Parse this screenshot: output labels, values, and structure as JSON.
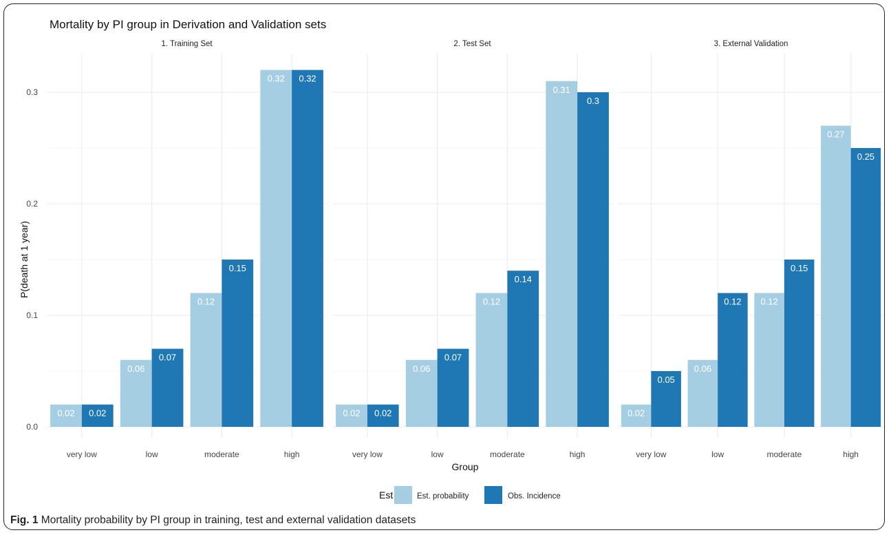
{
  "chart_data": {
    "type": "bar",
    "title": "Mortality by PI group in Derivation and Validation sets",
    "xlabel": "Group",
    "ylabel": "P(death at 1 year)",
    "ylim": [
      0,
      0.33
    ],
    "yticks": [
      "0.0",
      "0.1",
      "0.2",
      "0.3"
    ],
    "ytick_values": [
      0,
      0.1,
      0.2,
      0.3
    ],
    "grid": true,
    "categories": [
      "very low",
      "low",
      "moderate",
      "high"
    ],
    "legend": {
      "title": "Est",
      "position": "bottom",
      "entries": [
        "Est. probability",
        "Obs. Incidence"
      ]
    },
    "panels": [
      {
        "title": "1. Training Set",
        "series": [
          {
            "name": "Est. probability",
            "color": "#a6cee3",
            "values": [
              0.02,
              0.06,
              0.12,
              0.32
            ],
            "labels": [
              "0.02",
              "0.06",
              "0.12",
              "0.32"
            ]
          },
          {
            "name": "Obs. Incidence",
            "color": "#1f78b4",
            "values": [
              0.02,
              0.07,
              0.15,
              0.32
            ],
            "labels": [
              "0.02",
              "0.07",
              "0.15",
              "0.32"
            ]
          }
        ]
      },
      {
        "title": "2. Test Set",
        "series": [
          {
            "name": "Est. probability",
            "color": "#a6cee3",
            "values": [
              0.02,
              0.06,
              0.12,
              0.31
            ],
            "labels": [
              "0.02",
              "0.06",
              "0.12",
              "0.31"
            ]
          },
          {
            "name": "Obs. Incidence",
            "color": "#1f78b4",
            "values": [
              0.02,
              0.07,
              0.14,
              0.3
            ],
            "labels": [
              "0.02",
              "0.07",
              "0.14",
              "0.3"
            ]
          }
        ]
      },
      {
        "title": "3. External Validation",
        "series": [
          {
            "name": "Est. probability",
            "color": "#a6cee3",
            "values": [
              0.02,
              0.06,
              0.12,
              0.27
            ],
            "labels": [
              "0.02",
              "0.06",
              "0.12",
              "0.27"
            ]
          },
          {
            "name": "Obs. Incidence",
            "color": "#1f78b4",
            "values": [
              0.05,
              0.12,
              0.15,
              0.25
            ],
            "labels": [
              "0.05",
              "0.12",
              "0.15",
              "0.25"
            ]
          }
        ]
      }
    ]
  },
  "caption": {
    "label": "Fig. 1",
    "text": "Mortality probability by PI group in training, test and external validation datasets"
  }
}
